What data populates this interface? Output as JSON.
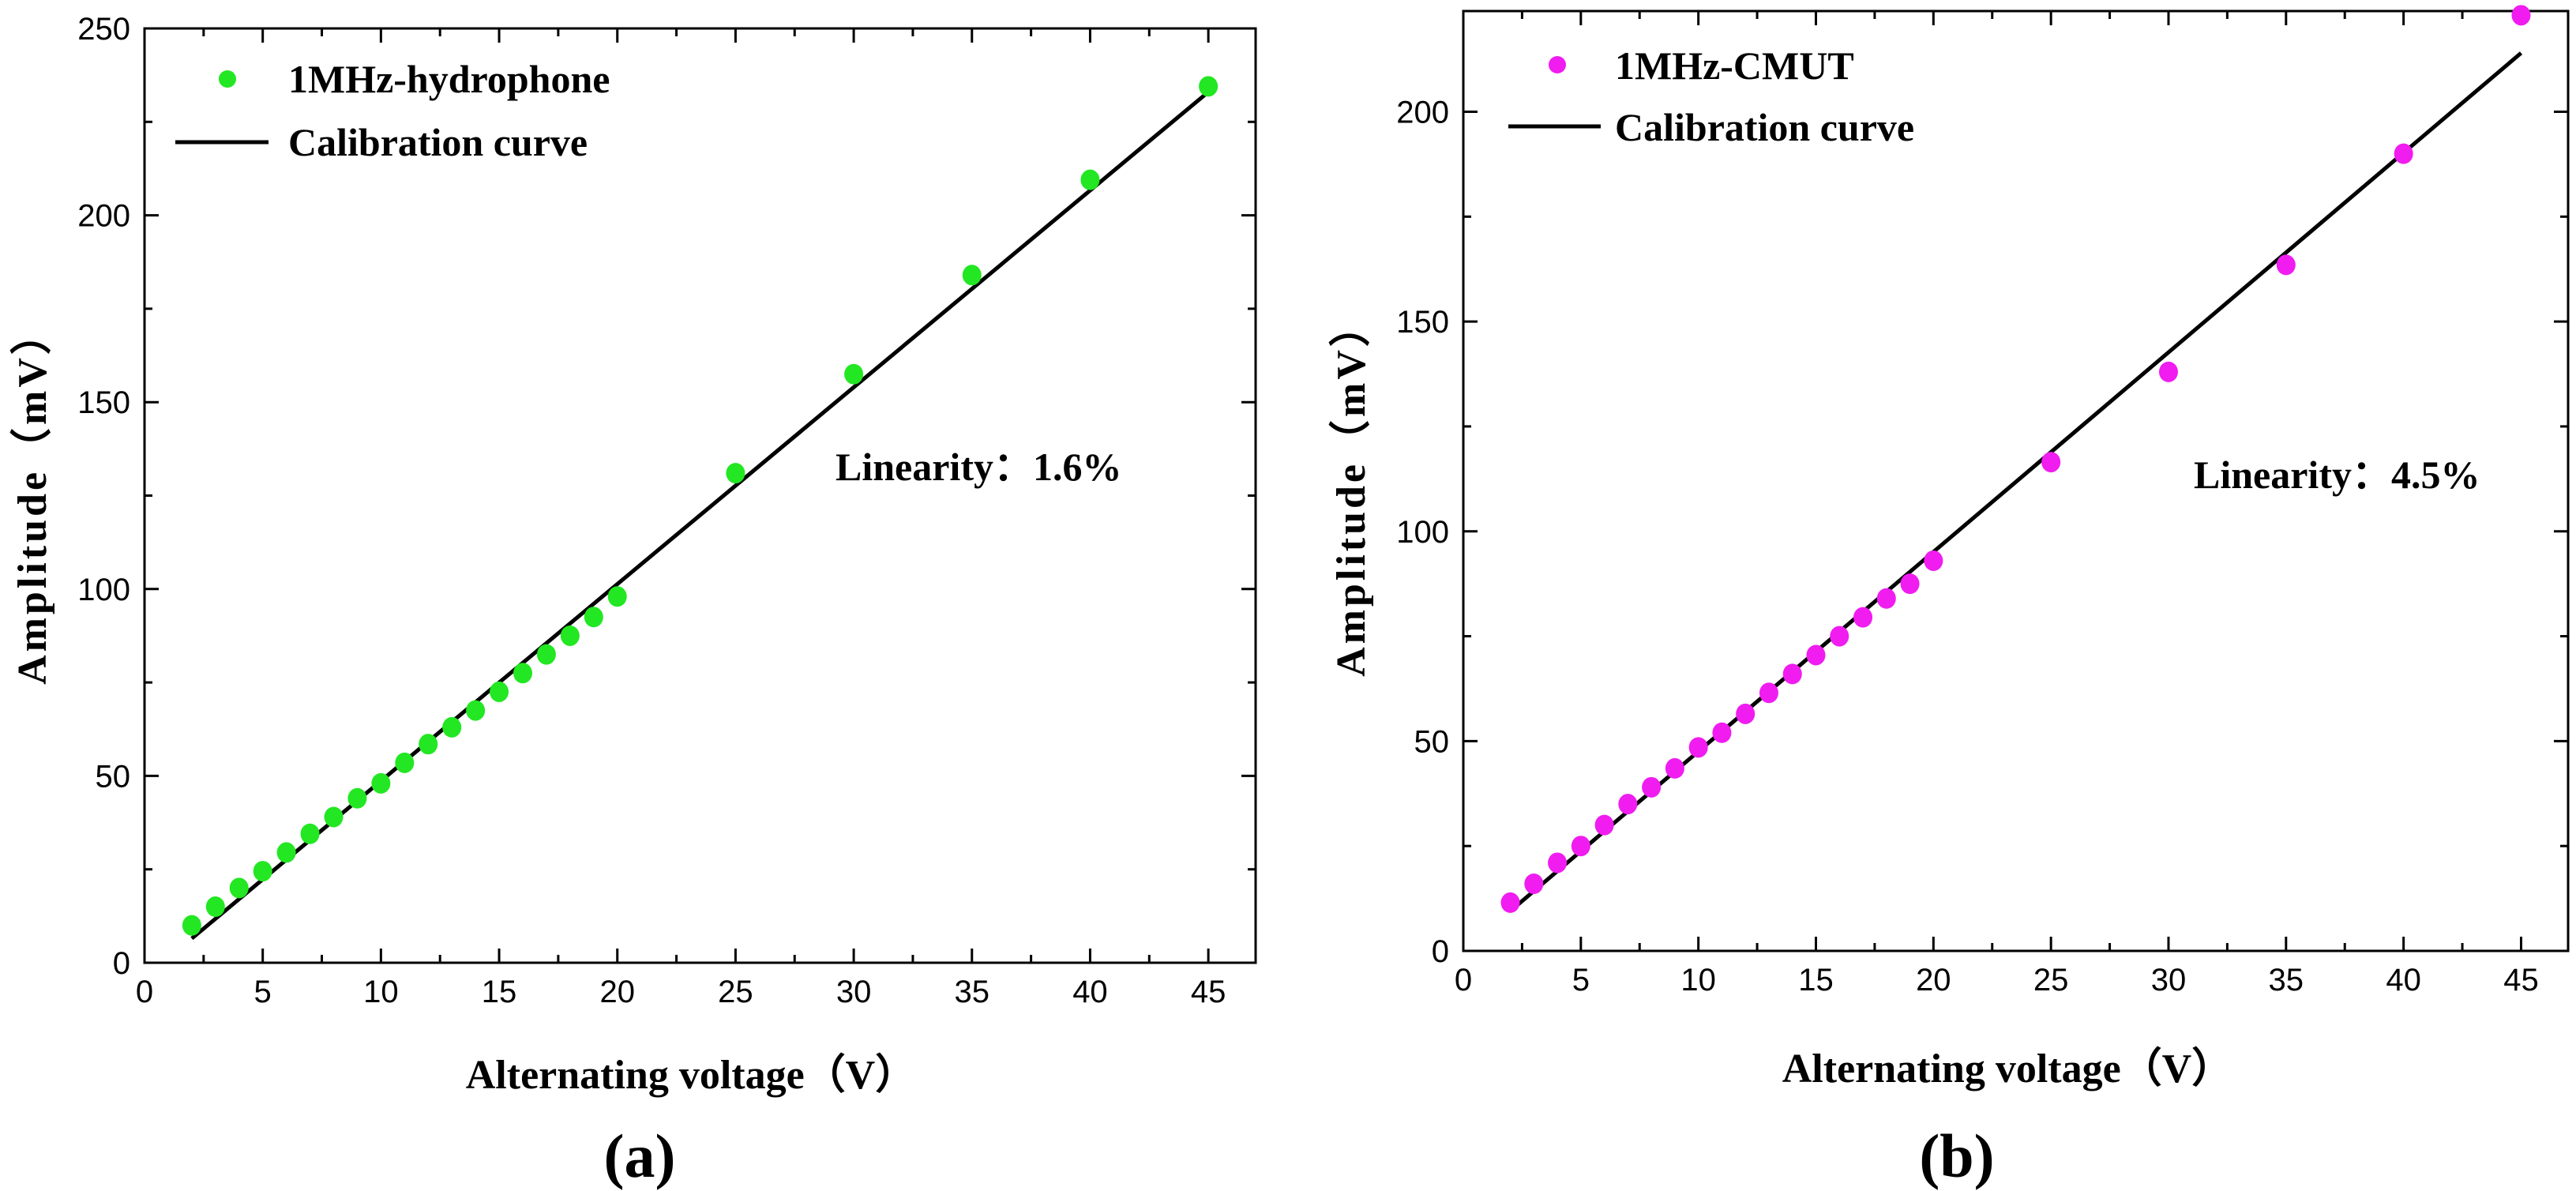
{
  "chart_data": [
    {
      "panel_label": "(a)",
      "type": "scatter",
      "xlabel": "Alternating voltage（V）",
      "ylabel": "Amplitude（mV）",
      "xlim": [
        0,
        47
      ],
      "ylim": [
        0,
        250
      ],
      "xticks": [
        0,
        5,
        10,
        15,
        20,
        25,
        30,
        35,
        40,
        45
      ],
      "yticks": [
        0,
        50,
        100,
        150,
        200,
        250
      ],
      "legend_position": "top-left",
      "annotation": "Linearity：1.6%",
      "series": [
        {
          "name": "1MHz-hydrophone",
          "kind": "points",
          "color": "#22e722",
          "x": [
            2,
            3,
            4,
            5,
            6,
            7,
            8,
            9,
            10,
            11,
            12,
            13,
            14,
            15,
            16,
            17,
            18,
            19,
            20,
            25,
            30,
            35,
            40,
            45
          ],
          "y": [
            10,
            15,
            20,
            24.5,
            29.5,
            34.5,
            39,
            44,
            48,
            53.5,
            58.5,
            63,
            67.5,
            72.5,
            77.5,
            82.5,
            87.5,
            92.5,
            98,
            131,
            157.5,
            184,
            209.5,
            234.5
          ]
        },
        {
          "name": "Calibration curve",
          "kind": "line",
          "color": "#000000",
          "x": [
            2,
            45
          ],
          "y": [
            6.5,
            233
          ]
        }
      ]
    },
    {
      "panel_label": "(b)",
      "type": "scatter",
      "xlabel": "Alternating voltage（V）",
      "ylabel": "Amplitude（mV）",
      "xlim": [
        0,
        47
      ],
      "ylim": [
        0,
        224
      ],
      "xticks": [
        0,
        5,
        10,
        15,
        20,
        25,
        30,
        35,
        40,
        45
      ],
      "yticks": [
        0,
        50,
        100,
        150,
        200
      ],
      "legend_position": "top-left",
      "annotation": "Linearity：4.5%",
      "series": [
        {
          "name": "1MHz-CMUT",
          "kind": "points",
          "color": "#f01cf0",
          "x": [
            2,
            3,
            4,
            5,
            6,
            7,
            8,
            9,
            10,
            11,
            12,
            13,
            14,
            15,
            16,
            17,
            18,
            19,
            20,
            25,
            30,
            35,
            40,
            45
          ],
          "y": [
            11.5,
            16,
            21,
            25,
            30,
            35,
            39,
            43.5,
            48.5,
            52,
            56.5,
            61.5,
            66,
            70.5,
            75,
            79.5,
            84,
            87.5,
            93,
            116.5,
            138,
            163.5,
            190,
            223
          ]
        },
        {
          "name": "Calibration curve",
          "kind": "line",
          "color": "#000000",
          "x": [
            2,
            45
          ],
          "y": [
            9.5,
            214
          ]
        }
      ]
    }
  ]
}
